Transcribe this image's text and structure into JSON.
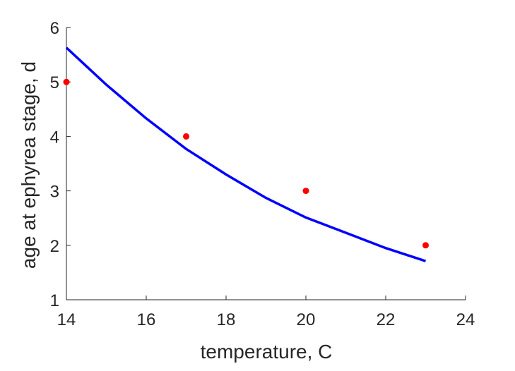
{
  "chart_data": {
    "type": "scatter",
    "title": "",
    "xlabel": "temperature, C",
    "ylabel": "age at ephyrea stage, d",
    "xlim": [
      14,
      24
    ],
    "ylim": [
      1,
      6
    ],
    "xticks": [
      14,
      16,
      18,
      20,
      22,
      24
    ],
    "yticks": [
      1,
      2,
      3,
      4,
      5,
      6
    ],
    "grid": false,
    "legend": "none",
    "series": [
      {
        "kind": "points",
        "color": "#ff0000",
        "x": [
          14,
          17,
          20,
          23
        ],
        "y": [
          5,
          4,
          3,
          2
        ]
      },
      {
        "kind": "line",
        "color": "#0000ff",
        "x": [
          14,
          15,
          16,
          17,
          18,
          19,
          20,
          21,
          22,
          23
        ],
        "y": [
          5.63,
          4.95,
          4.33,
          3.77,
          3.3,
          2.87,
          2.51,
          2.23,
          1.95,
          1.71
        ]
      }
    ]
  }
}
